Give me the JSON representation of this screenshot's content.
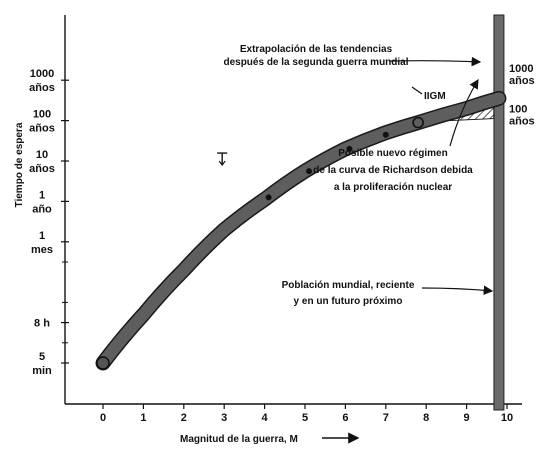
{
  "chart_data": {
    "type": "line",
    "title": "",
    "xlabel": "Magnitud de la guerra, M",
    "ylabel": "Tiempo de espera",
    "xlim": [
      0,
      10
    ],
    "x_ticks": [
      "0",
      "1",
      "2",
      "3",
      "4",
      "5",
      "6",
      "7",
      "8",
      "9",
      "10"
    ],
    "y_ticks": [
      {
        "lines": [
          "5",
          "min"
        ],
        "level": 0
      },
      {
        "lines": [
          "8 h"
        ],
        "level": 1
      },
      {
        "lines": [
          "1",
          "mes"
        ],
        "level": 3
      },
      {
        "lines": [
          "1",
          "año"
        ],
        "level": 4
      },
      {
        "lines": [
          "10",
          "años"
        ],
        "level": 5
      },
      {
        "lines": [
          "100",
          "años"
        ],
        "level": 6
      },
      {
        "lines": [
          "1000",
          "años"
        ],
        "level": 7
      }
    ],
    "right_ticks": [
      {
        "lines": [
          "1000",
          "años"
        ],
        "level": 7
      },
      {
        "lines": [
          "100",
          "años"
        ],
        "level": 6
      }
    ],
    "series": [
      {
        "x": [
          0,
          1,
          2,
          3,
          4,
          5,
          6,
          7,
          7.8,
          9,
          9.8
        ],
        "y": [
          0,
          1.2,
          2.3,
          3.3,
          4.05,
          4.75,
          5.3,
          5.7,
          5.95,
          6.3,
          6.55
        ]
      }
    ],
    "points": [
      {
        "x": 0,
        "y": 0,
        "style": "big"
      },
      {
        "x": 4.1,
        "y": 4.1,
        "style": "dot"
      },
      {
        "x": 5.1,
        "y": 4.75,
        "style": "dot"
      },
      {
        "x": 6.1,
        "y": 5.3,
        "style": "dot"
      },
      {
        "x": 7.0,
        "y": 5.65,
        "style": "dot"
      },
      {
        "x": 7.8,
        "y": 5.95,
        "style": "open"
      }
    ],
    "world_population_x": 9.8,
    "annotations": {
      "extrapolation": [
        "Extrapolación de las tendencias",
        "después de la segunda guerra mundial"
      ],
      "wwii": "IIGM",
      "regime": [
        "Posible nuevo régimen",
        "de la curva de Richardson debida",
        "a la proliferación nuclear"
      ],
      "population": [
        "Población mundial, reciente",
        "y en un futuro próximo"
      ]
    }
  }
}
